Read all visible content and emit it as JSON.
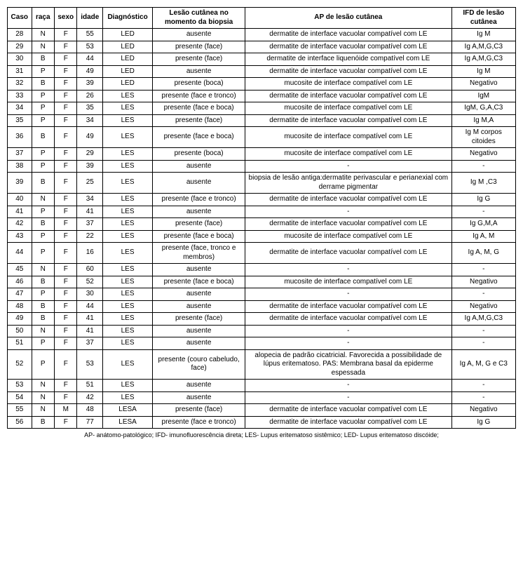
{
  "table": {
    "columns": [
      "Caso",
      "raça",
      "sexo",
      "idade",
      "Diagnóstico",
      "Lesão cutânea no momento da biopsia",
      "AP de lesão cutânea",
      "IFD de lesão cutânea"
    ],
    "rows": [
      [
        "28",
        "N",
        "F",
        "55",
        "LED",
        "ausente",
        "dermatite de  interface vacuolar compatível com LE",
        "Ig M"
      ],
      [
        "29",
        "N",
        "F",
        "53",
        "LED",
        "presente (face)",
        "dermatite de  interface vacuolar compatível com LE",
        "Ig A,M,G,C3"
      ],
      [
        "30",
        "B",
        "F",
        "44",
        "LED",
        "presente (face)",
        "dermatite de interface liquenóide compatível com LE",
        "Ig A,M,G,C3"
      ],
      [
        "31",
        "P",
        "F",
        "49",
        "LED",
        "ausente",
        "dermatite de  interface vacuolar compatível com LE",
        "Ig M"
      ],
      [
        "32",
        "B",
        "F",
        "39",
        "LED",
        "presente (boca)",
        "mucosite de interface compatível com LE",
        "Negativo"
      ],
      [
        "33",
        "P",
        "F",
        "26",
        "LES",
        "presente (face e tronco)",
        "dermatite de  interface vacuolar compatível com LE",
        "IgM"
      ],
      [
        "34",
        "P",
        "F",
        "35",
        "LES",
        "presente (face e boca)",
        "mucosite de interface compatível com LE",
        "IgM, G,A,C3"
      ],
      [
        "35",
        "P",
        "F",
        "34",
        "LES",
        "presente (face)",
        "dermatite de  interface vacuolar compatível com LE",
        "Ig M,A"
      ],
      [
        "36",
        "B",
        "F",
        "49",
        "LES",
        "presente (face e boca)",
        "mucosite de interface compatível com LE",
        "Ig M corpos citoides"
      ],
      [
        "37",
        "P",
        "F",
        "29",
        "LES",
        "presente (boca)",
        "mucosite de interface compatível com LE",
        "Negativo"
      ],
      [
        "38",
        "P",
        "F",
        "39",
        "LES",
        "ausente",
        "-",
        "-"
      ],
      [
        "39",
        "B",
        "F",
        "25",
        "LES",
        "ausente",
        "biopsia de lesão antiga:dermatite perivascular e perianexial com derrame pigmentar",
        "Ig M ,C3"
      ],
      [
        "40",
        "N",
        "F",
        "34",
        "LES",
        "presente (face e tronco)",
        "dermatite de  interface vacuolar compatível com LE",
        "Ig G"
      ],
      [
        "41",
        "P",
        "F",
        "41",
        "LES",
        "ausente",
        "-",
        "-"
      ],
      [
        "42",
        "B",
        "F",
        "37",
        "LES",
        "presente (face)",
        "dermatite de  interface vacuolar compatível com LE",
        "Ig G,M,A"
      ],
      [
        "43",
        "P",
        "F",
        "22",
        "LES",
        "presente (face e boca)",
        "mucosite de interface compatível com LE",
        "Ig A, M"
      ],
      [
        "44",
        "P",
        "F",
        "16",
        "LES",
        "presente (face, tronco e membros)",
        "dermatite de  interface vacuolar compatível com LE",
        "Ig A, M, G"
      ],
      [
        "45",
        "N",
        "F",
        "60",
        "LES",
        "ausente",
        "-",
        "-"
      ],
      [
        "46",
        "B",
        "F",
        "52",
        "LES",
        "presente (face e boca)",
        "mucosite de interface compatível com LE",
        "Negativo"
      ],
      [
        "47",
        "P",
        "F",
        "30",
        "LES",
        "ausente",
        "-",
        "-"
      ],
      [
        "48",
        "B",
        "F",
        "44",
        "LES",
        "ausente",
        "dermatite de  interface vacuolar compatível com LE",
        "Negativo"
      ],
      [
        "49",
        "B",
        "F",
        "41",
        "LES",
        "presente (face)",
        "dermatite de  interface vacuolar compatível com LE",
        "Ig A,M,G,C3"
      ],
      [
        "50",
        "N",
        "F",
        "41",
        "LES",
        "ausente",
        "-",
        "-"
      ],
      [
        "51",
        "P",
        "F",
        "37",
        "LES",
        "ausente",
        "-",
        "-"
      ],
      [
        "52",
        "P",
        "F",
        "53",
        "LES",
        "presente (couro cabeludo, face)",
        "alopecia de padrão cicatricial. Favorecida a possibilidade de lúpus eritematoso. PAS: Membrana basal da epiderme espessada",
        "Ig A, M, G e C3"
      ],
      [
        "53",
        "N",
        "F",
        "51",
        "LES",
        "ausente",
        "-",
        "-"
      ],
      [
        "54",
        "N",
        "F",
        "42",
        "LES",
        "ausente",
        "-",
        "-"
      ],
      [
        "55",
        "N",
        "M",
        "48",
        "LESA",
        "presente (face)",
        "dermatite de  interface vacuolar compatível com LE",
        "Negativo"
      ],
      [
        "56",
        "B",
        "F",
        "77",
        "LESA",
        "presente (face e tronco)",
        "dermatite de  interface vacuolar compatível com LE",
        "Ig G"
      ]
    ]
  },
  "footnote": "AP- anátomo-patológico; IFD- imunofluorescência direta; LES- Lupus eritematoso sistêmico; LED- Lupus eritematoso discóide;"
}
